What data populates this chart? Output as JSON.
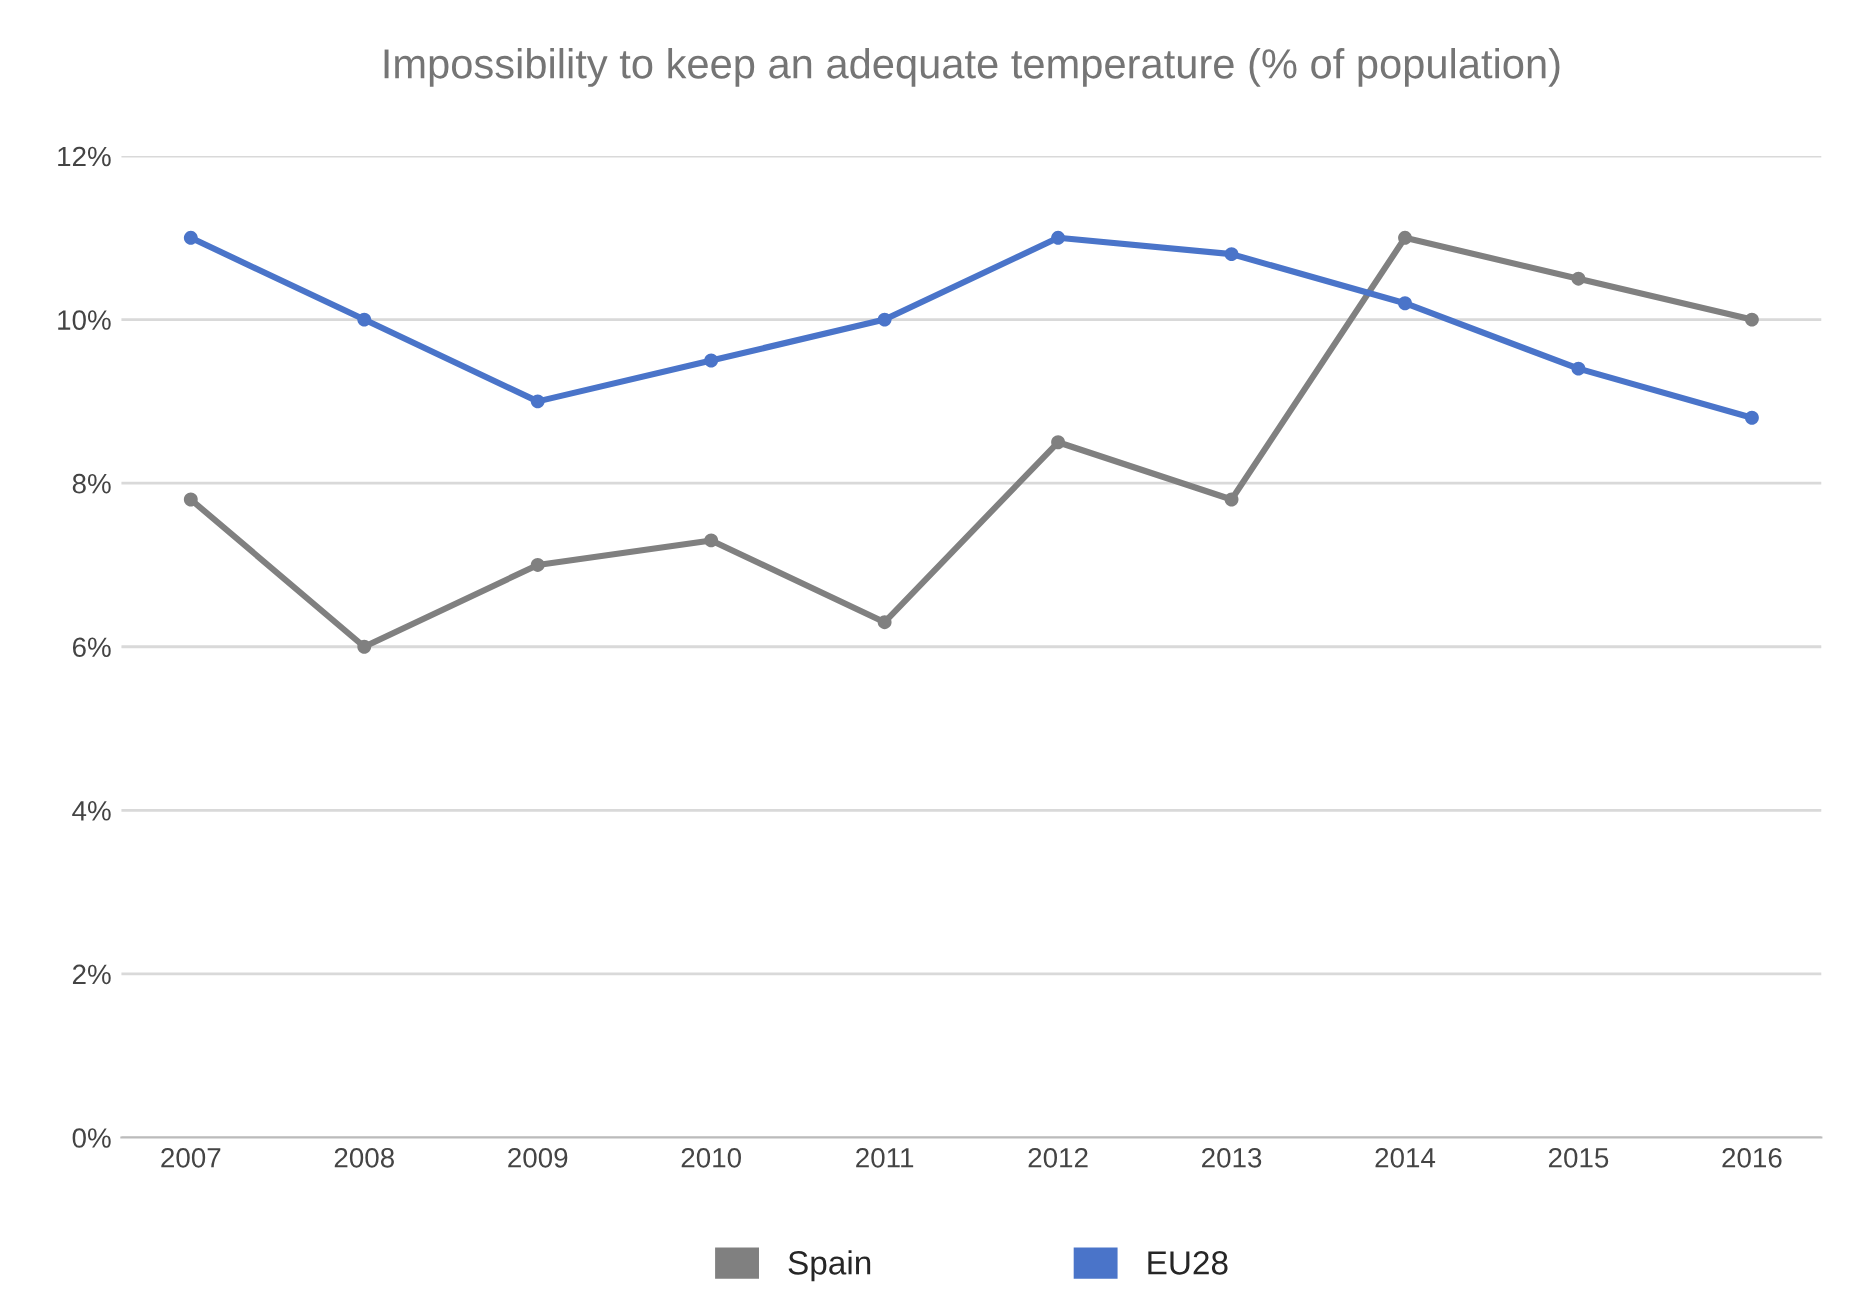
{
  "chart_data": {
    "type": "line",
    "title": "Impossibility to keep an adequate temperature (% of population)",
    "categories": [
      "2007",
      "2008",
      "2009",
      "2010",
      "2011",
      "2012",
      "2013",
      "2014",
      "2015",
      "2016"
    ],
    "series": [
      {
        "name": "Spain",
        "color": "#808080",
        "values": [
          7.8,
          6.0,
          7.0,
          7.3,
          6.3,
          8.5,
          7.8,
          11.0,
          10.5,
          10.0
        ]
      },
      {
        "name": "EU28",
        "color": "#4a74c9",
        "values": [
          11.0,
          10.0,
          9.0,
          9.5,
          10.0,
          11.0,
          10.8,
          10.2,
          9.4,
          8.8
        ]
      }
    ],
    "ylim": [
      0,
      12
    ],
    "yticks": [
      {
        "value": 0,
        "label": "0%"
      },
      {
        "value": 2,
        "label": "2%"
      },
      {
        "value": 4,
        "label": "4%"
      },
      {
        "value": 6,
        "label": "6%"
      },
      {
        "value": 8,
        "label": "8%"
      },
      {
        "value": 10,
        "label": "10%"
      },
      {
        "value": 12,
        "label": "12%"
      }
    ],
    "grid": "y",
    "legend": "bottom",
    "marker": "circle",
    "line_style": "solid"
  }
}
